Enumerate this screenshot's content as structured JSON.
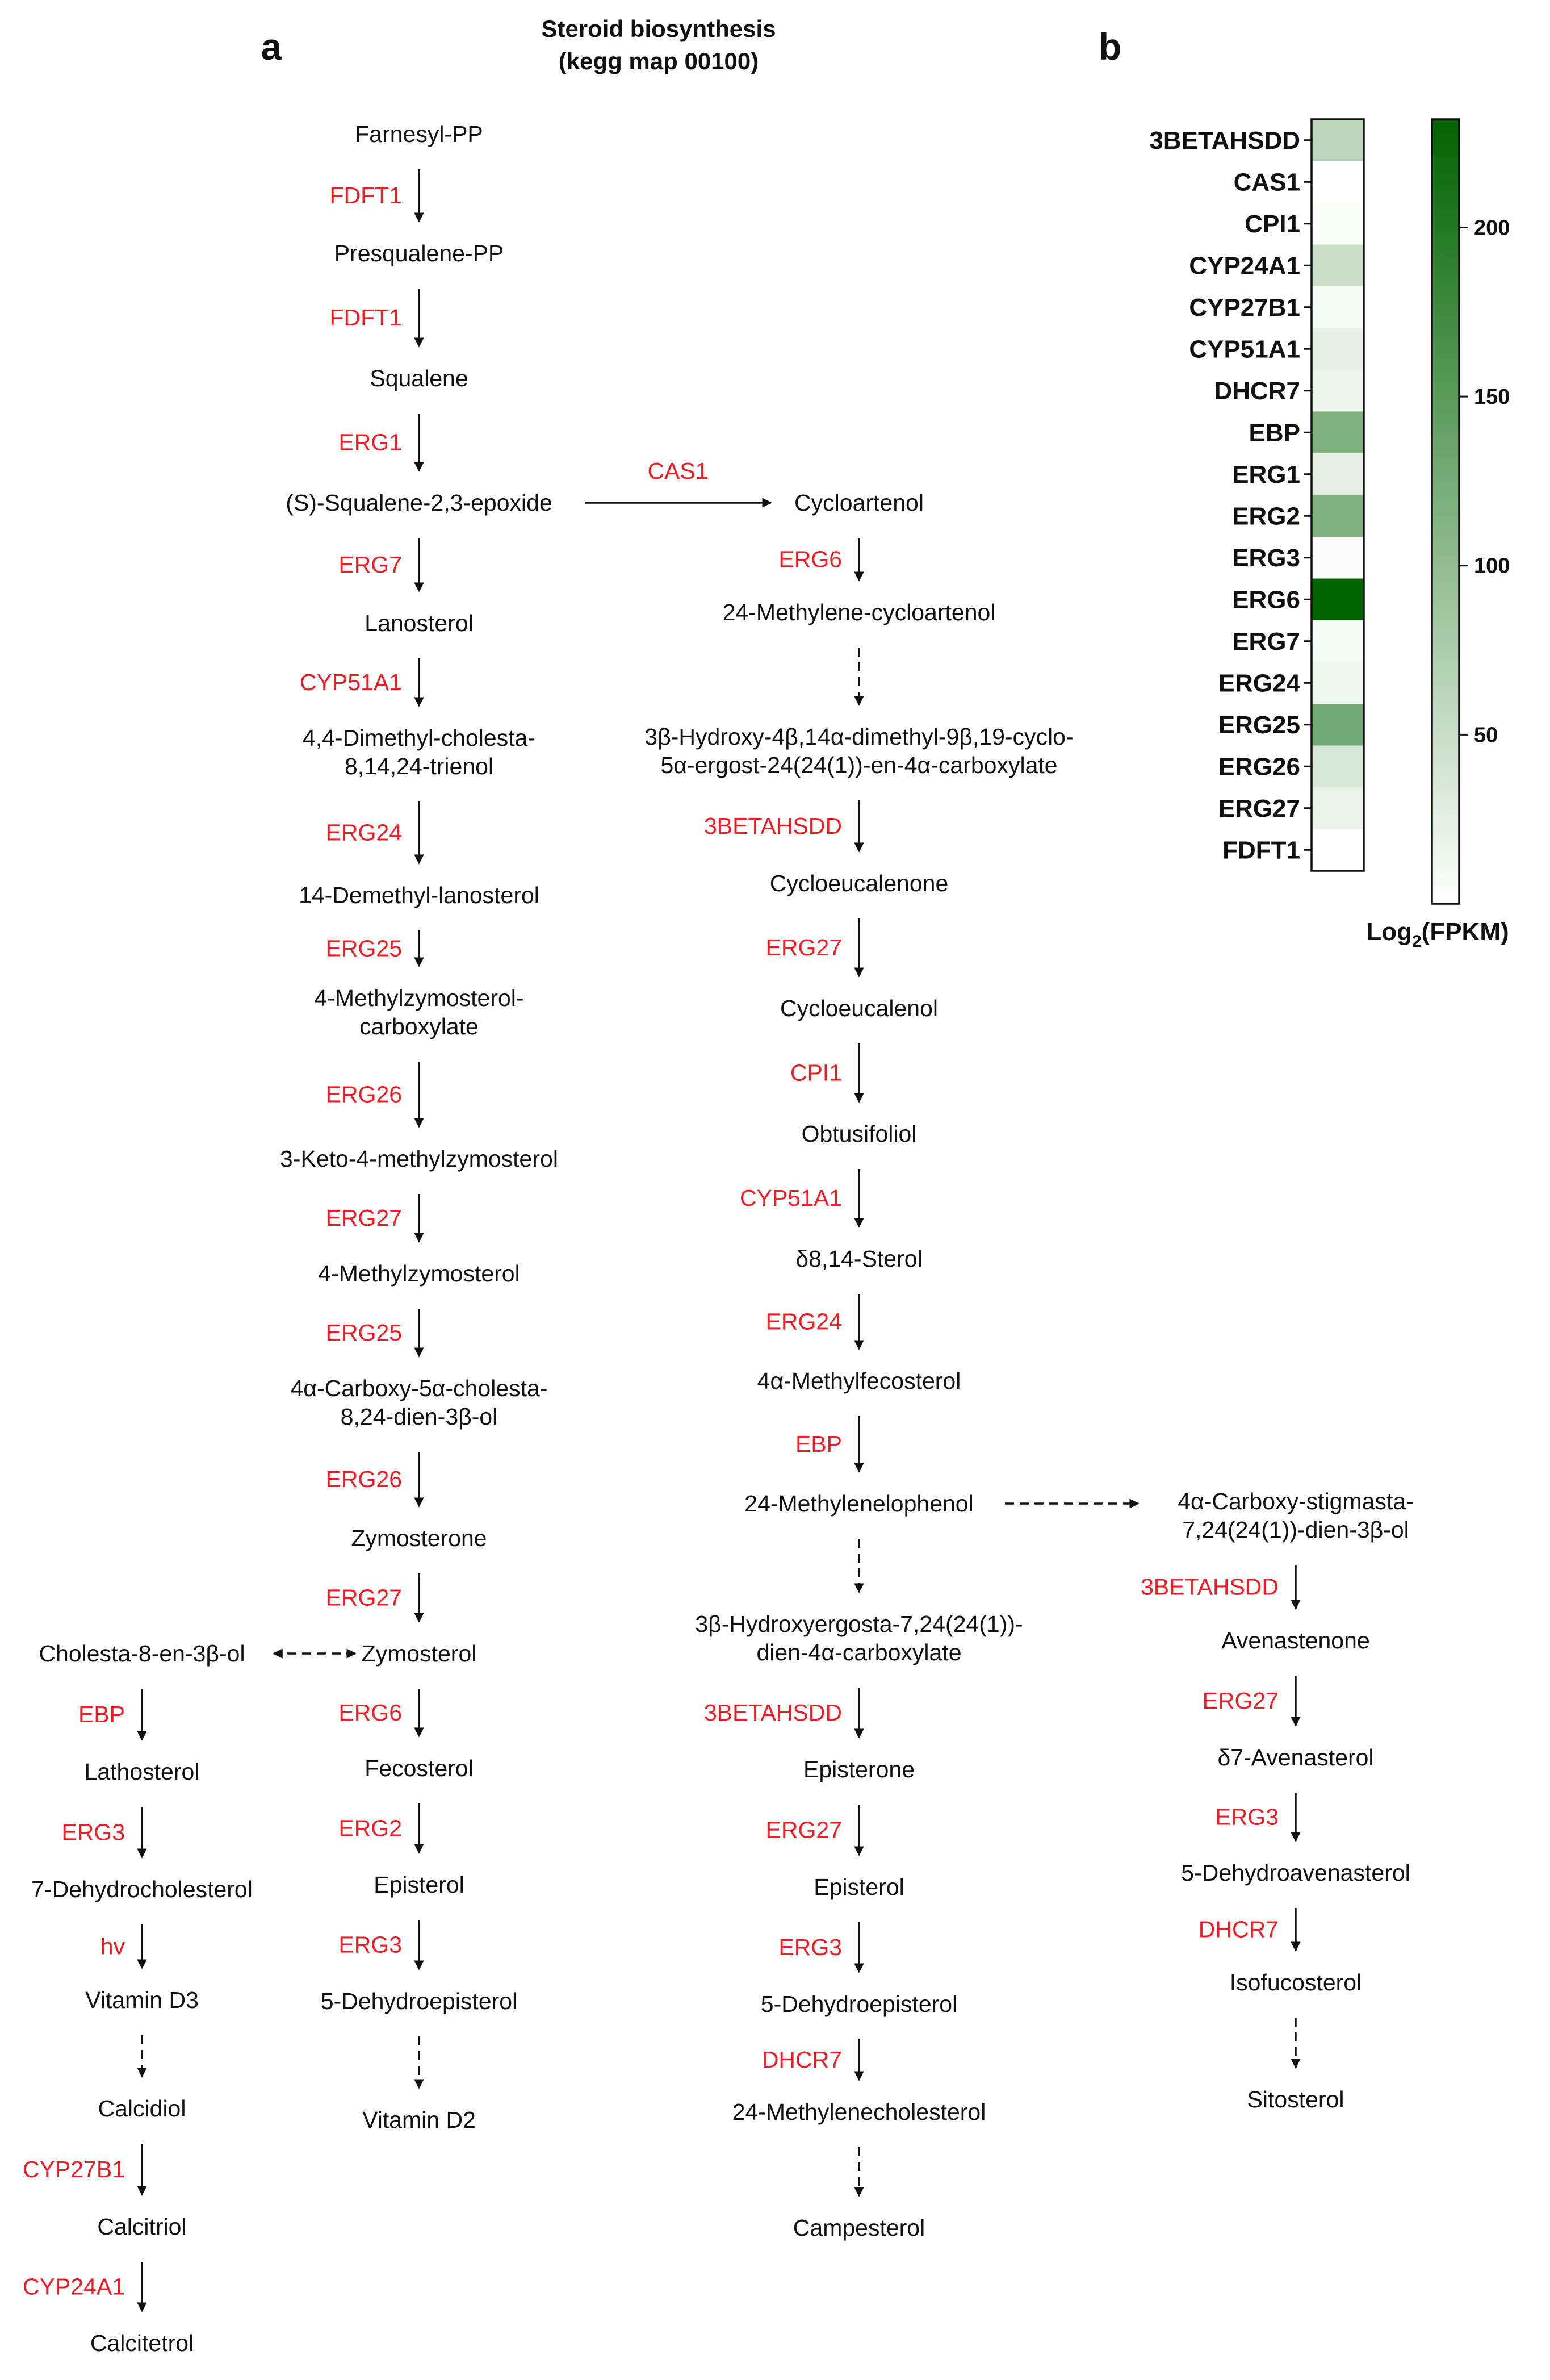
{
  "panels": {
    "a": "a",
    "b": "b"
  },
  "title": {
    "line1": "Steroid biosynthesis",
    "line2": "(kegg map 00100)"
  },
  "colors": {
    "enzyme": "#ee1c25",
    "text": "#111111",
    "heat_low": "#ffffff",
    "heat_high": "#006400"
  },
  "pathway": {
    "nodes": [
      {
        "id": "farnesyl_pp",
        "label": [
          "Farnesyl-PP"
        ]
      },
      {
        "id": "presqualene_pp",
        "label": [
          "Presqualene-PP"
        ]
      },
      {
        "id": "squalene",
        "label": [
          "Squalene"
        ]
      },
      {
        "id": "squalene_epoxide",
        "label": [
          "(S)-Squalene-2,3-epoxide"
        ]
      },
      {
        "id": "lanosterol",
        "label": [
          "Lanosterol"
        ]
      },
      {
        "id": "dimethyl_cholesta",
        "label": [
          "4,4-Dimethyl-cholesta-",
          "8,14,24-trienol"
        ]
      },
      {
        "id": "demethyl_lanosterol",
        "label": [
          "14-Demethyl-lanosterol"
        ]
      },
      {
        "id": "methylzymosterol_carboxylate",
        "label": [
          "4-Methylzymosterol-",
          "carboxylate"
        ]
      },
      {
        "id": "keto_methylzymosterol",
        "label": [
          "3-Keto-4-methylzymosterol"
        ]
      },
      {
        "id": "methylzymosterol",
        "label": [
          "4-Methylzymosterol"
        ]
      },
      {
        "id": "carboxy_cholesta",
        "label": [
          "4α-Carboxy-5α-cholesta-",
          "8,24-dien-3β-ol"
        ]
      },
      {
        "id": "zymosterone",
        "label": [
          "Zymosterone"
        ]
      },
      {
        "id": "zymosterol",
        "label": [
          "Zymosterol"
        ]
      },
      {
        "id": "fecosterol",
        "label": [
          "Fecosterol"
        ]
      },
      {
        "id": "episterol_l",
        "label": [
          "Episterol"
        ]
      },
      {
        "id": "dehydroepisterol_l",
        "label": [
          "5-Dehydroepisterol"
        ]
      },
      {
        "id": "vitamin_d2",
        "label": [
          "Vitamin D2"
        ]
      },
      {
        "id": "cholesta_8_en",
        "label": [
          "Cholesta-8-en-3β-ol"
        ]
      },
      {
        "id": "lathosterol",
        "label": [
          "Lathosterol"
        ]
      },
      {
        "id": "dehydrocholesterol",
        "label": [
          "7-Dehydrocholesterol"
        ]
      },
      {
        "id": "vitamin_d3",
        "label": [
          "Vitamin D3"
        ]
      },
      {
        "id": "calcidiol",
        "label": [
          "Calcidiol"
        ]
      },
      {
        "id": "calcitriol",
        "label": [
          "Calcitriol"
        ]
      },
      {
        "id": "calcitetrol",
        "label": [
          "Calcitetrol"
        ]
      },
      {
        "id": "cycloartenol",
        "label": [
          "Cycloartenol"
        ]
      },
      {
        "id": "methylene_cycloartenol",
        "label": [
          "24-Methylene-cycloartenol"
        ]
      },
      {
        "id": "hydroxy_dimethyl_cyclo",
        "label": [
          "3β-Hydroxy-4β,14α-dimethyl-9β,19-cyclo-",
          "5α-ergost-24(24(1))-en-4α-carboxylate"
        ]
      },
      {
        "id": "cycloeucalenone",
        "label": [
          "Cycloeucalenone"
        ]
      },
      {
        "id": "cycloeucalenol",
        "label": [
          "Cycloeucalenol"
        ]
      },
      {
        "id": "obtusifoliol",
        "label": [
          "Obtusifoliol"
        ]
      },
      {
        "id": "delta8_14_sterol",
        "label": [
          "δ8,14-Sterol"
        ]
      },
      {
        "id": "methylfecosterol",
        "label": [
          "4α-Methylfecosterol"
        ]
      },
      {
        "id": "methylenelophenol",
        "label": [
          "24-Methylenelophenol"
        ]
      },
      {
        "id": "hydroxyergosta",
        "label": [
          "3β-Hydroxyergosta-7,24(24(1))-",
          "dien-4α-carboxylate"
        ]
      },
      {
        "id": "episterone",
        "label": [
          "Episterone"
        ]
      },
      {
        "id": "episterol_m",
        "label": [
          "Episterol"
        ]
      },
      {
        "id": "dehydroepisterol_m",
        "label": [
          "5-Dehydroepisterol"
        ]
      },
      {
        "id": "methylenecholesterol",
        "label": [
          "24-Methylenecholesterol"
        ]
      },
      {
        "id": "campesterol",
        "label": [
          "Campesterol"
        ]
      },
      {
        "id": "carboxy_stigmasta",
        "label": [
          "4α-Carboxy-stigmasta-",
          "7,24(24(1))-dien-3β-ol"
        ]
      },
      {
        "id": "avenastenone",
        "label": [
          "Avenastenone"
        ]
      },
      {
        "id": "delta7_avenasterol",
        "label": [
          "δ7-Avenasterol"
        ]
      },
      {
        "id": "dehydroavenasterol",
        "label": [
          "5-Dehydroavenasterol"
        ]
      },
      {
        "id": "isofucosterol",
        "label": [
          "Isofucosterol"
        ]
      },
      {
        "id": "sitosterol",
        "label": [
          "Sitosterol"
        ]
      }
    ],
    "edges": [
      {
        "from": "farnesyl_pp",
        "to": "presqualene_pp",
        "enzyme": "FDFT1"
      },
      {
        "from": "presqualene_pp",
        "to": "squalene",
        "enzyme": "FDFT1"
      },
      {
        "from": "squalene",
        "to": "squalene_epoxide",
        "enzyme": "ERG1"
      },
      {
        "from": "squalene_epoxide",
        "to": "lanosterol",
        "enzyme": "ERG7"
      },
      {
        "from": "lanosterol",
        "to": "dimethyl_cholesta",
        "enzyme": "CYP51A1"
      },
      {
        "from": "dimethyl_cholesta",
        "to": "demethyl_lanosterol",
        "enzyme": "ERG24"
      },
      {
        "from": "demethyl_lanosterol",
        "to": "methylzymosterol_carboxylate",
        "enzyme": "ERG25"
      },
      {
        "from": "methylzymosterol_carboxylate",
        "to": "keto_methylzymosterol",
        "enzyme": "ERG26"
      },
      {
        "from": "keto_methylzymosterol",
        "to": "methylzymosterol",
        "enzyme": "ERG27"
      },
      {
        "from": "methylzymosterol",
        "to": "carboxy_cholesta",
        "enzyme": "ERG25"
      },
      {
        "from": "carboxy_cholesta",
        "to": "zymosterone",
        "enzyme": "ERG26"
      },
      {
        "from": "zymosterone",
        "to": "zymosterol",
        "enzyme": "ERG27"
      },
      {
        "from": "zymosterol",
        "to": "fecosterol",
        "enzyme": "ERG6"
      },
      {
        "from": "fecosterol",
        "to": "episterol_l",
        "enzyme": "ERG2"
      },
      {
        "from": "episterol_l",
        "to": "dehydroepisterol_l",
        "enzyme": "ERG3"
      },
      {
        "from": "dehydroepisterol_l",
        "to": "vitamin_d2",
        "enzyme": "",
        "dashed": true
      },
      {
        "from": "zymosterol",
        "to": "cholesta_8_en",
        "enzyme": "",
        "dashed": true,
        "bidirectional": true
      },
      {
        "from": "cholesta_8_en",
        "to": "lathosterol",
        "enzyme": "EBP"
      },
      {
        "from": "lathosterol",
        "to": "dehydrocholesterol",
        "enzyme": "ERG3"
      },
      {
        "from": "dehydrocholesterol",
        "to": "vitamin_d3",
        "enzyme": "hv"
      },
      {
        "from": "vitamin_d3",
        "to": "calcidiol",
        "enzyme": "",
        "dashed": true
      },
      {
        "from": "calcidiol",
        "to": "calcitriol",
        "enzyme": "CYP27B1"
      },
      {
        "from": "calcitriol",
        "to": "calcitetrol",
        "enzyme": "CYP24A1"
      },
      {
        "from": "squalene_epoxide",
        "to": "cycloartenol",
        "enzyme": "CAS1"
      },
      {
        "from": "cycloartenol",
        "to": "methylene_cycloartenol",
        "enzyme": "ERG6"
      },
      {
        "from": "methylene_cycloartenol",
        "to": "hydroxy_dimethyl_cyclo",
        "enzyme": "",
        "dashed": true
      },
      {
        "from": "hydroxy_dimethyl_cyclo",
        "to": "cycloeucalenone",
        "enzyme": "3BETAHSDD"
      },
      {
        "from": "cycloeucalenone",
        "to": "cycloeucalenol",
        "enzyme": "ERG27"
      },
      {
        "from": "cycloeucalenol",
        "to": "obtusifoliol",
        "enzyme": "CPI1"
      },
      {
        "from": "obtusifoliol",
        "to": "delta8_14_sterol",
        "enzyme": "CYP51A1"
      },
      {
        "from": "delta8_14_sterol",
        "to": "methylfecosterol",
        "enzyme": "ERG24"
      },
      {
        "from": "methylfecosterol",
        "to": "methylenelophenol",
        "enzyme": "EBP"
      },
      {
        "from": "methylenelophenol",
        "to": "hydroxyergosta",
        "enzyme": "",
        "dashed": true
      },
      {
        "from": "hydroxyergosta",
        "to": "episterone",
        "enzyme": "3BETAHSDD"
      },
      {
        "from": "episterone",
        "to": "episterol_m",
        "enzyme": "ERG27"
      },
      {
        "from": "episterol_m",
        "to": "dehydroepisterol_m",
        "enzyme": "ERG3"
      },
      {
        "from": "dehydroepisterol_m",
        "to": "methylenecholesterol",
        "enzyme": "DHCR7"
      },
      {
        "from": "methylenecholesterol",
        "to": "campesterol",
        "enzyme": "",
        "dashed": true
      },
      {
        "from": "methylenelophenol",
        "to": "carboxy_stigmasta",
        "enzyme": "",
        "dashed": true
      },
      {
        "from": "carboxy_stigmasta",
        "to": "avenastenone",
        "enzyme": "3BETAHSDD"
      },
      {
        "from": "avenastenone",
        "to": "delta7_avenasterol",
        "enzyme": "ERG27"
      },
      {
        "from": "delta7_avenasterol",
        "to": "dehydroavenasterol",
        "enzyme": "ERG3"
      },
      {
        "from": "dehydroavenasterol",
        "to": "isofucosterol",
        "enzyme": "DHCR7"
      },
      {
        "from": "isofucosterol",
        "to": "sitosterol",
        "enzyme": "",
        "dashed": true
      }
    ]
  },
  "chart_data": {
    "type": "heatmap",
    "rows": [
      "3BETAHSDD",
      "CAS1",
      "CPI1",
      "CYP24A1",
      "CYP27B1",
      "CYP51A1",
      "DHCR7",
      "EBP",
      "ERG1",
      "ERG2",
      "ERG3",
      "ERG6",
      "ERG7",
      "ERG24",
      "ERG25",
      "ERG26",
      "ERG27",
      "FDFT1"
    ],
    "values": [
      62,
      2,
      5,
      48,
      8,
      22,
      16,
      118,
      22,
      118,
      4,
      232,
      8,
      12,
      128,
      36,
      20,
      2
    ],
    "colorbar": {
      "ticks": [
        50,
        100,
        150,
        200
      ],
      "range": [
        0,
        232
      ],
      "title": "Log",
      "title_sub": "2",
      "title_suffix": "(FPKM)"
    }
  }
}
